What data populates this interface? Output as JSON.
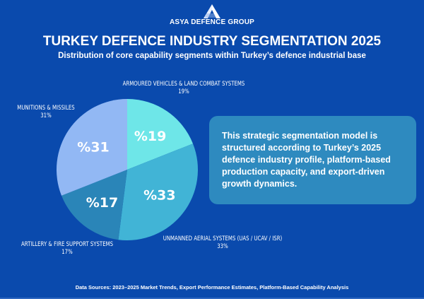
{
  "header": {
    "brand": "ASYA DEFENCE GROUP",
    "title": "TURKEY DEFENCE INDUSTRY SEGMENTATION 2025",
    "subtitle": "Distribution of core capability segments within Turkey’s defence industrial base",
    "logo_icon": "triangle-a-logo"
  },
  "chart_data": {
    "type": "pie",
    "title": "TURKEY DEFENCE INDUSTRY SEGMENTATION 2025",
    "subtitle": "Distribution of core capability segments within Turkey’s defence industrial base",
    "categories": [
      "ARMOURED VEHICLES & LAND COMBAT SYSTEMS",
      "UNMANNED AERIAL SYSTEMS (UAS / UCAV / ISR)",
      "ARTILLERY & FIRE SUPPORT SYSTEMS",
      "MUNITIONS & MISSILES"
    ],
    "values": [
      19,
      33,
      17,
      31
    ],
    "inner_labels": [
      "%19",
      "%33",
      "%17",
      "%31"
    ],
    "outer_pct_labels": [
      "19%",
      "33%",
      "17%",
      "31%"
    ],
    "colors": [
      "#6ee6e8",
      "#41b4d6",
      "#2a85b8",
      "#92b8f4"
    ],
    "start_angle": "12 o'clock, clockwise",
    "legend": "none (outer labels)"
  },
  "infobox": {
    "text": "This strategic segmentation model is structured according to Turkey’s 2025 defence industry profile, platform-based production capacity, and export-driven growth dynamics."
  },
  "footer": {
    "sources": "Data Sources: 2023–2025 Market Trends, Export Performance Estimates, Platform-Based Capability Analysis"
  },
  "colors": {
    "background": "#0a4aad",
    "infobox": "#2e8abf"
  }
}
